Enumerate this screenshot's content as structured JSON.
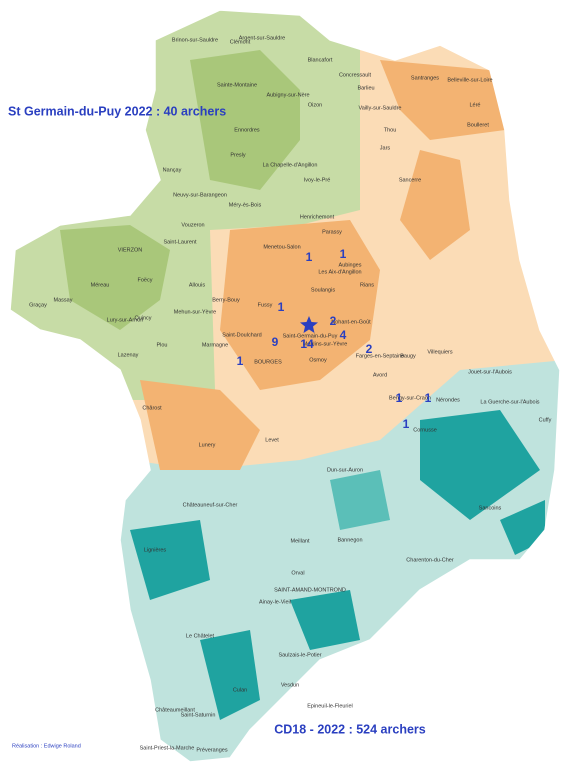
{
  "title": "St Germain-du-Puy 2022 : 40 archers",
  "subtitle": "CD18 - 2022 : 524 archers",
  "credit": "Réalisation : Edwige Roland",
  "counts": [
    1,
    1,
    1,
    2,
    9,
    14,
    4,
    2,
    1,
    1,
    1,
    1
  ],
  "communes": [
    "Brinon-sur-Sauldre",
    "Clémont",
    "Argent-sur-Sauldre",
    "Blancafort",
    "Sainte-Montaine",
    "Aubigny-sur-Nère",
    "Oizon",
    "Concressault",
    "Barlieu",
    "Santranges",
    "Belleville-sur-Loire",
    "Léré",
    "Ennordres",
    "Presly",
    "La Chapelle-d'Angillon",
    "Ivoy-le-Pré",
    "Nançay",
    "Neuvy-sur-Barangeon",
    "Méry-ès-Bois",
    "Henrichemont",
    "Sancerre",
    "Jars",
    "Vailly-sur-Sauldre",
    "Thou",
    "Boulleret",
    "Vouzeron",
    "Saint-Laurent",
    "VIERZON",
    "Massay",
    "Graçay",
    "Méreau",
    "Foëcy",
    "Allouis",
    "Quincy",
    "Mehun-sur-Yèvre",
    "Lury-sur-Arnon",
    "Lazenay",
    "Menetou-Salon",
    "Parassy",
    "Aubinges",
    "Soulangis",
    "Les Aix-d'Angillon",
    "Rians",
    "BOURGES",
    "Saint-Doulchard",
    "Marmagne",
    "Berry-Bouy",
    "Fussy",
    "Saint-Germain-du-Puy",
    "Osmoy",
    "Moulins-sur-Yèvre",
    "Nohant-en-Goût",
    "Farges-en-Septaine",
    "Avord",
    "Baugy",
    "Villequiers",
    "Bengy-sur-Craon",
    "Nérondes",
    "Cornusse",
    "Jouet-sur-l'Aubois",
    "La Guerche-sur-l'Aubois",
    "Cuffy",
    "Plou",
    "Chârost",
    "Lunery",
    "Levet",
    "Dun-sur-Auron",
    "Sancoins",
    "Bannegon",
    "Charenton-du-Cher",
    "Lignières",
    "Châteauneuf-sur-Cher",
    "SAINT-AMAND-MONTROND",
    "Orval",
    "Meillant",
    "Ainay-le-Vieil",
    "Le Châtelet",
    "Saint-Saturnin",
    "Culan",
    "Châteaumeillant",
    "Saint-Priest-la-Marche",
    "Préveranges",
    "Epineuil-le-Fleuriel",
    "Saulzais-le-Potier",
    "Vesdun"
  ]
}
